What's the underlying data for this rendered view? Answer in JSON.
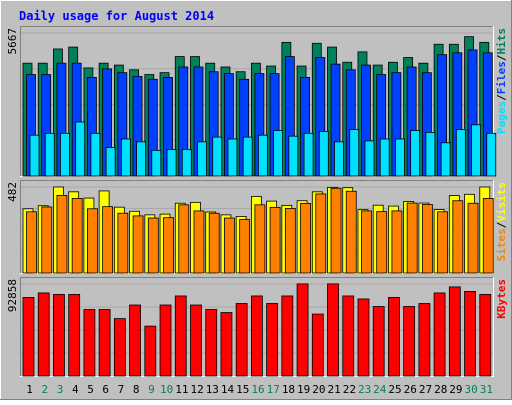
{
  "title": "Daily usage for August 2014",
  "colors": {
    "background": "#c0c0c0",
    "title": "#0000ff",
    "hits": "#00805c",
    "files": "#0040ff",
    "pages": "#00e0ff",
    "visits": "#ffff00",
    "sites": "#ff8000",
    "kbytes": "#ff0000",
    "weekend_day_label": "#00805c",
    "weekday_label": "#000000"
  },
  "chart_data": {
    "type": "bar",
    "title": "Daily usage for August 2014",
    "categories": [
      "1",
      "2",
      "3",
      "4",
      "5",
      "6",
      "7",
      "8",
      "9",
      "10",
      "11",
      "12",
      "13",
      "14",
      "15",
      "16",
      "17",
      "18",
      "19",
      "20",
      "21",
      "22",
      "23",
      "24",
      "25",
      "26",
      "27",
      "28",
      "29",
      "30",
      "31"
    ],
    "weekend_days": [
      "2",
      "3",
      "9",
      "10",
      "16",
      "17",
      "23",
      "24",
      "30",
      "31"
    ],
    "panels": [
      {
        "id": "top",
        "max_label": "5667",
        "ymax": 5667,
        "legend": [
          {
            "text": "Pages",
            "color": "#00e0ff"
          },
          {
            "text": "/",
            "color": "#000000"
          },
          {
            "text": "Files",
            "color": "#0040ff"
          },
          {
            "text": "/",
            "color": "#000000"
          },
          {
            "text": "Hits",
            "color": "#00805c"
          }
        ],
        "series": [
          {
            "name": "Hits",
            "color": "#00805c",
            "values": [
              4471,
              4471,
              5034,
              5109,
              4283,
              4471,
              4396,
              4208,
              4020,
              4095,
              4733,
              4733,
              4471,
              4320,
              4133,
              4471,
              4358,
              5296,
              4358,
              5259,
              5109,
              4508,
              4920,
              4396,
              4508,
              4696,
              4471,
              5221,
              5221,
              5522,
              5296
            ]
          },
          {
            "name": "Files",
            "color": "#0040ff",
            "values": [
              4020,
              4020,
              4471,
              4471,
              3907,
              4245,
              4095,
              3945,
              3832,
              3907,
              4320,
              4320,
              4133,
              4058,
              3832,
              4058,
              4058,
              4733,
              3907,
              4696,
              4433,
              4208,
              4396,
              4020,
              4095,
              4320,
              4095,
              4808,
              4883,
              4996,
              4883
            ]
          },
          {
            "name": "Pages",
            "color": "#00e0ff",
            "values": [
              1616,
              1691,
              1691,
              2142,
              1691,
              1128,
              1466,
              1353,
              1015,
              1052,
              1052,
              1353,
              1541,
              1466,
              1541,
              1616,
              1804,
              1578,
              1691,
              1766,
              1353,
              1841,
              1391,
              1466,
              1466,
              1804,
              1728,
              1316,
              1841,
              2029,
              1691
            ]
          }
        ]
      },
      {
        "id": "middle",
        "max_label": "482",
        "ymax": 482,
        "legend": [
          {
            "text": "Sites",
            "color": "#ff8000"
          },
          {
            "text": "/",
            "color": "#000000"
          },
          {
            "text": "Visits",
            "color": "#ffff00"
          }
        ],
        "series": [
          {
            "name": "Visits",
            "color": "#ffff00",
            "values": [
              360,
              377,
              482,
              455,
              420,
              460,
              369,
              346,
              326,
              330,
              391,
              396,
              342,
              326,
              317,
              429,
              403,
              379,
              405,
              455,
              480,
              478,
              355,
              380,
              375,
              401,
              392,
              356,
              434,
              441,
              482
            ]
          },
          {
            "name": "Sites",
            "color": "#ff8000",
            "values": [
              343,
              370,
              435,
              418,
              360,
              372,
              335,
              320,
              308,
              310,
              382,
              348,
              335,
              308,
              300,
              382,
              368,
              362,
              390,
              443,
              475,
              458,
              348,
              344,
              348,
              392,
              384,
              343,
              405,
              391,
              418
            ]
          }
        ]
      },
      {
        "id": "bottom",
        "max_label": "92858",
        "ymax": 92858,
        "legend": [
          {
            "text": "KBytes",
            "color": "#ff0000"
          }
        ],
        "series": [
          {
            "name": "KBytes",
            "color": "#ff0000",
            "values": [
              79280,
              83850,
              82330,
              82330,
              67090,
              67090,
              57950,
              71660,
              50330,
              71660,
              80800,
              71660,
              67090,
              64050,
              73190,
              80800,
              73190,
              80800,
              92980,
              62520,
              92980,
              80800,
              77760,
              70140,
              79280,
              70140,
              73190,
              83850,
              89950,
              85370,
              82330
            ]
          }
        ]
      }
    ]
  }
}
